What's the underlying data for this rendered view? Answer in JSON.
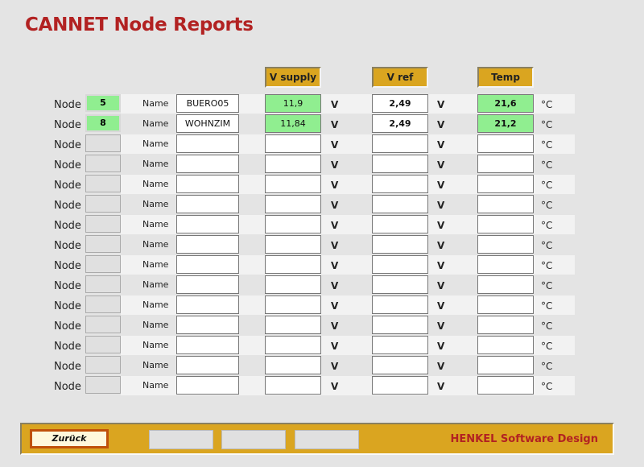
{
  "title": "CANNET Node Reports",
  "headers": {
    "vsupply": "V supply",
    "vref": "V ref",
    "temp": "Temp"
  },
  "labels": {
    "node": "Node",
    "name": "Name",
    "volt_unit": "V",
    "temp_unit": "°C"
  },
  "rows": [
    {
      "node": "5",
      "name": "BUERO05",
      "vsupply": "11,9",
      "vref": "2,49",
      "temp": "21,6"
    },
    {
      "node": "8",
      "name": "WOHNZIM",
      "vsupply": "11,84",
      "vref": "2,49",
      "temp": "21,2"
    },
    {
      "node": "",
      "name": "",
      "vsupply": "",
      "vref": "",
      "temp": ""
    },
    {
      "node": "",
      "name": "",
      "vsupply": "",
      "vref": "",
      "temp": ""
    },
    {
      "node": "",
      "name": "",
      "vsupply": "",
      "vref": "",
      "temp": ""
    },
    {
      "node": "",
      "name": "",
      "vsupply": "",
      "vref": "",
      "temp": ""
    },
    {
      "node": "",
      "name": "",
      "vsupply": "",
      "vref": "",
      "temp": ""
    },
    {
      "node": "",
      "name": "",
      "vsupply": "",
      "vref": "",
      "temp": ""
    },
    {
      "node": "",
      "name": "",
      "vsupply": "",
      "vref": "",
      "temp": ""
    },
    {
      "node": "",
      "name": "",
      "vsupply": "",
      "vref": "",
      "temp": ""
    },
    {
      "node": "",
      "name": "",
      "vsupply": "",
      "vref": "",
      "temp": ""
    },
    {
      "node": "",
      "name": "",
      "vsupply": "",
      "vref": "",
      "temp": ""
    },
    {
      "node": "",
      "name": "",
      "vsupply": "",
      "vref": "",
      "temp": ""
    },
    {
      "node": "",
      "name": "",
      "vsupply": "",
      "vref": "",
      "temp": ""
    },
    {
      "node": "",
      "name": "",
      "vsupply": "",
      "vref": "",
      "temp": ""
    }
  ],
  "footer": {
    "back_label": "Zurück",
    "brand": "HENKEL Software Design"
  },
  "colors": {
    "title": "#b22222",
    "header_bg": "#daa520",
    "ok_green": "#90ee90"
  }
}
